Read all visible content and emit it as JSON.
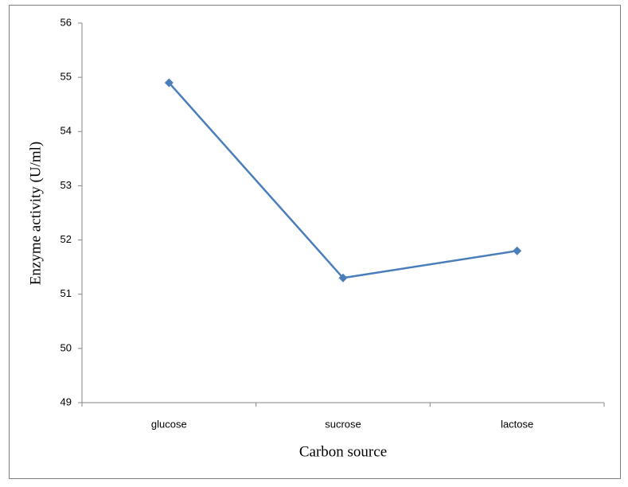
{
  "chart_data": {
    "type": "line",
    "x_label": "Carbon source",
    "y_label": "Enzyme activity (U/ml)",
    "categories": [
      "glucose",
      "sucrose",
      "lactose"
    ],
    "series": [
      {
        "name": "Enzyme activity",
        "color": "#4a7ebb",
        "values": [
          54.9,
          51.3,
          51.8
        ]
      }
    ],
    "ylim": [
      49,
      56
    ],
    "yticks": [
      49,
      50,
      51,
      52,
      53,
      54,
      55,
      56
    ],
    "grid": false,
    "legend": false
  }
}
